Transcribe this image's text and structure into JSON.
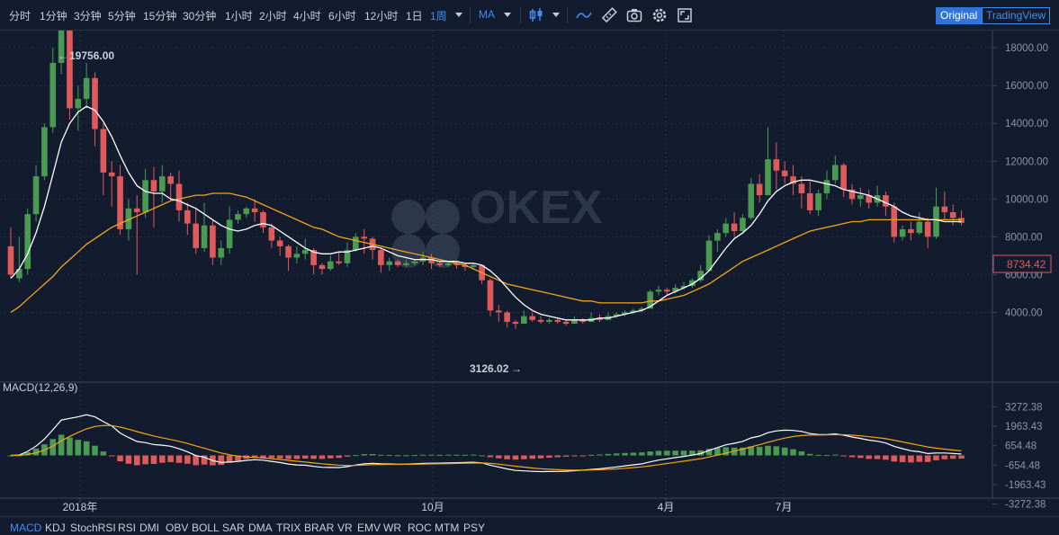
{
  "toolbar": {
    "intervals": [
      {
        "label": "分时",
        "active": false
      },
      {
        "label": "1分钟",
        "active": false
      },
      {
        "label": "3分钟",
        "active": false
      },
      {
        "label": "5分钟",
        "active": false
      },
      {
        "label": "15分钟",
        "active": false
      },
      {
        "label": "30分钟",
        "active": false
      },
      {
        "label": "1小时",
        "active": false
      },
      {
        "label": "2小时",
        "active": false
      },
      {
        "label": "4小时",
        "active": false
      },
      {
        "label": "6小时",
        "active": false
      },
      {
        "label": "12小时",
        "active": false
      },
      {
        "label": "1日",
        "active": false
      },
      {
        "label": "1周",
        "active": true
      }
    ],
    "ma_label": "MA",
    "original_label": "Original",
    "tradingview_label": "TradingView",
    "icons": [
      "candlestick-icon",
      "line-style-icon",
      "drawing-tools-icon",
      "screenshot-icon",
      "settings-icon",
      "fullscreen-icon"
    ]
  },
  "watermark": "OKEX",
  "price_axis": [
    "18000.00",
    "16000.00",
    "14000.00",
    "12000.00",
    "10000.00",
    "8000.00",
    "6000.00",
    "4000.00"
  ],
  "last_price": "8734.42",
  "macd_axis": [
    "3272.38",
    "1963.43",
    "654.48",
    "-654.48",
    "-1963.43",
    "-3272.38"
  ],
  "macd_label": "MACD(12,26,9)",
  "x_labels": [
    "2018年",
    "10月",
    "4月",
    "7月"
  ],
  "annotations": {
    "high": "19756.00",
    "low": "3126.02"
  },
  "bottom_indicators": [
    {
      "label": "MACD",
      "active": true
    },
    {
      "label": "KDJ",
      "active": false
    },
    {
      "label": "StochRSI",
      "active": false
    },
    {
      "label": "RSI",
      "active": false
    },
    {
      "label": "DMI",
      "active": false
    },
    {
      "label": "OBV",
      "active": false
    },
    {
      "label": "BOLL",
      "active": false
    },
    {
      "label": "SAR",
      "active": false
    },
    {
      "label": "DMA",
      "active": false
    },
    {
      "label": "TRIX",
      "active": false
    },
    {
      "label": "BRAR",
      "active": false
    },
    {
      "label": "VR",
      "active": false
    },
    {
      "label": "EMV",
      "active": false
    },
    {
      "label": "WR",
      "active": false
    },
    {
      "label": "ROC",
      "active": false
    },
    {
      "label": "MTM",
      "active": false
    },
    {
      "label": "PSY",
      "active": false
    }
  ],
  "colors": {
    "up": "#4a9a52",
    "down": "#e05a5c",
    "ma_fast": "#ffffff",
    "ma_slow": "#f3a419",
    "accent": "#3f8cf2",
    "background": "#131c2e"
  },
  "chart_data": {
    "type": "candlestick",
    "interval": "1周",
    "price_range": [
      3000,
      20000
    ],
    "macd_range": [
      -3600,
      3600
    ],
    "candles": [
      [
        7500,
        8500,
        6000,
        5800
      ],
      [
        5800,
        8000,
        6300,
        5600
      ],
      [
        6300,
        9500,
        9200,
        6000
      ],
      [
        9200,
        11800,
        11200,
        8800
      ],
      [
        11200,
        14000,
        13800,
        11000
      ],
      [
        13800,
        18000,
        17200,
        13500
      ],
      [
        17200,
        19756,
        19300,
        16600
      ],
      [
        19300,
        19700,
        14800,
        14200
      ],
      [
        14800,
        16000,
        15300,
        13600
      ],
      [
        15300,
        17200,
        16400,
        14800
      ],
      [
        16400,
        16700,
        13700,
        12800
      ],
      [
        13700,
        14000,
        11400,
        10200
      ],
      [
        11400,
        12000,
        11200,
        9600
      ],
      [
        11200,
        11800,
        8400,
        8100
      ],
      [
        8400,
        10000,
        9500,
        7800
      ],
      [
        9500,
        10200,
        9300,
        6000
      ],
      [
        9300,
        11600,
        11000,
        9000
      ],
      [
        11000,
        11700,
        10400,
        8500
      ],
      [
        10400,
        11800,
        11200,
        9800
      ],
      [
        11200,
        11400,
        10800,
        9900
      ],
      [
        10800,
        11500,
        9400,
        8800
      ],
      [
        9400,
        9800,
        8700,
        8100
      ],
      [
        8700,
        9500,
        7400,
        7100
      ],
      [
        7400,
        9800,
        8600,
        7200
      ],
      [
        8600,
        8900,
        6900,
        6500
      ],
      [
        6900,
        7800,
        7400,
        6500
      ],
      [
        7400,
        9600,
        8900,
        7100
      ],
      [
        8900,
        9400,
        9200,
        8700
      ],
      [
        9200,
        9600,
        9500,
        9000
      ],
      [
        9500,
        10000,
        9300,
        8800
      ],
      [
        9300,
        9400,
        8500,
        8200
      ],
      [
        8500,
        8700,
        7800,
        7400
      ],
      [
        7800,
        8000,
        7500,
        7000
      ],
      [
        7500,
        7600,
        6900,
        6200
      ],
      [
        6900,
        7500,
        7100,
        6600
      ],
      [
        7100,
        7900,
        7300,
        6800
      ],
      [
        7300,
        7400,
        6500,
        6000
      ],
      [
        6500,
        6600,
        6300,
        6000
      ],
      [
        6300,
        7000,
        6700,
        6200
      ],
      [
        6700,
        7200,
        6600,
        6500
      ],
      [
        6600,
        7700,
        7300,
        6400
      ],
      [
        7300,
        8200,
        8000,
        7200
      ],
      [
        8000,
        8400,
        7900,
        7100
      ],
      [
        7900,
        8000,
        7300,
        6800
      ],
      [
        7300,
        7400,
        6500,
        6100
      ],
      [
        6500,
        6900,
        6700,
        6200
      ],
      [
        6700,
        6800,
        6500,
        6400
      ],
      [
        6500,
        6800,
        6600,
        6400
      ],
      [
        6600,
        6800,
        6700,
        6500
      ],
      [
        6700,
        7200,
        6900,
        6500
      ],
      [
        6900,
        7100,
        6600,
        6300
      ],
      [
        6600,
        6700,
        6500,
        6400
      ],
      [
        6500,
        6700,
        6600,
        6400
      ],
      [
        6600,
        6700,
        6500,
        6300
      ],
      [
        6500,
        6600,
        6400,
        6200
      ],
      [
        6400,
        6600,
        6500,
        6300
      ],
      [
        6500,
        6500,
        5700,
        5500
      ],
      [
        5700,
        5800,
        4100,
        3800
      ],
      [
        4100,
        4400,
        4000,
        3500
      ],
      [
        4000,
        4100,
        3500,
        3200
      ],
      [
        3500,
        3600,
        3400,
        3126
      ],
      [
        3400,
        4100,
        3800,
        3400
      ],
      [
        3800,
        4000,
        3600,
        3500
      ],
      [
        3600,
        3800,
        3500,
        3400
      ],
      [
        3500,
        3700,
        3600,
        3400
      ],
      [
        3600,
        3700,
        3500,
        3400
      ],
      [
        3500,
        3600,
        3400,
        3300
      ],
      [
        3400,
        3800,
        3600,
        3400
      ],
      [
        3600,
        3700,
        3500,
        3400
      ],
      [
        3500,
        4000,
        3700,
        3500
      ],
      [
        3700,
        3900,
        3600,
        3500
      ],
      [
        3600,
        4000,
        3800,
        3600
      ],
      [
        3800,
        4000,
        3900,
        3700
      ],
      [
        3900,
        4100,
        4000,
        3800
      ],
      [
        4000,
        4200,
        4100,
        3900
      ],
      [
        4100,
        4300,
        4200,
        4000
      ],
      [
        4200,
        5200,
        5100,
        4200
      ],
      [
        5100,
        5400,
        5200,
        4900
      ],
      [
        5200,
        5300,
        5100,
        4900
      ],
      [
        5100,
        5500,
        5300,
        5000
      ],
      [
        5300,
        5600,
        5400,
        5200
      ],
      [
        5400,
        5800,
        5700,
        5300
      ],
      [
        5700,
        6500,
        6200,
        5600
      ],
      [
        6200,
        8100,
        7800,
        6200
      ],
      [
        7800,
        8400,
        8200,
        7200
      ],
      [
        8200,
        9000,
        8700,
        8000
      ],
      [
        8700,
        9300,
        8300,
        8000
      ],
      [
        8300,
        9200,
        9000,
        8200
      ],
      [
        9000,
        11100,
        10800,
        8900
      ],
      [
        10800,
        11300,
        10200,
        9800
      ],
      [
        10200,
        13800,
        12100,
        10200
      ],
      [
        12100,
        13000,
        11500,
        10500
      ],
      [
        11500,
        12000,
        11200,
        10800
      ],
      [
        11200,
        11800,
        10800,
        10200
      ],
      [
        10800,
        11200,
        10300,
        9500
      ],
      [
        10300,
        11000,
        9400,
        9200
      ],
      [
        9400,
        10500,
        10300,
        9100
      ],
      [
        10300,
        11500,
        11000,
        10000
      ],
      [
        11000,
        12300,
        11800,
        10800
      ],
      [
        11800,
        11900,
        10500,
        10100
      ],
      [
        10500,
        10800,
        10000,
        9700
      ],
      [
        10000,
        10600,
        10200,
        9600
      ],
      [
        10200,
        10500,
        9800,
        9500
      ],
      [
        9800,
        10700,
        10200,
        9600
      ],
      [
        10200,
        10400,
        9600,
        9100
      ],
      [
        9600,
        9800,
        8000,
        7700
      ],
      [
        8000,
        8600,
        8400,
        7800
      ],
      [
        8400,
        8800,
        8200,
        7800
      ],
      [
        8200,
        9300,
        8800,
        8100
      ],
      [
        8800,
        9000,
        8000,
        7400
      ],
      [
        8000,
        10600,
        9600,
        7900
      ],
      [
        9600,
        10400,
        9300,
        8900
      ],
      [
        9300,
        9700,
        9000,
        8600
      ],
      [
        9000,
        9400,
        8734,
        8600
      ]
    ],
    "ma_fast_series": [
      5800,
      6300,
      7100,
      8200,
      9600,
      11300,
      13000,
      14000,
      14600,
      14900,
      14700,
      14100,
      13300,
      12300,
      11400,
      10700,
      10400,
      10300,
      10300,
      10000,
      9900,
      9700,
      9500,
      9200,
      8900,
      8600,
      8400,
      8300,
      8400,
      8600,
      8700,
      8600,
      8300,
      8000,
      7700,
      7400,
      7200,
      7100,
      7100,
      7200,
      7200,
      7300,
      7400,
      7500,
      7400,
      7200,
      7000,
      6900,
      6800,
      6800,
      6800,
      6700,
      6700,
      6700,
      6600,
      6600,
      6500,
      6200,
      5800,
      5300,
      4800,
      4400,
      4100,
      3900,
      3800,
      3700,
      3600,
      3600,
      3600,
      3600,
      3700,
      3700,
      3800,
      3900,
      4000,
      4100,
      4300,
      4600,
      4900,
      5100,
      5300,
      5500,
      5800,
      6200,
      6800,
      7400,
      7900,
      8200,
      8600,
      9200,
      9900,
      10400,
      10700,
      10900,
      11000,
      11000,
      10900,
      10800,
      10700,
      10500,
      10400,
      10300,
      10200,
      10000,
      9800,
      9600,
      9300,
      9100,
      9000,
      8900,
      8900,
      8800,
      8800,
      8800
    ],
    "ma_slow_series": [
      4000,
      4300,
      4700,
      5100,
      5500,
      5900,
      6400,
      6800,
      7200,
      7600,
      7900,
      8200,
      8500,
      8700,
      8900,
      9100,
      9300,
      9500,
      9700,
      9900,
      10000,
      10100,
      10200,
      10200,
      10300,
      10300,
      10300,
      10200,
      10100,
      9900,
      9700,
      9500,
      9300,
      9100,
      8900,
      8700,
      8500,
      8400,
      8200,
      8000,
      7900,
      7800,
      7700,
      7600,
      7500,
      7400,
      7300,
      7200,
      7100,
      7000,
      6900,
      6800,
      6700,
      6600,
      6500,
      6300,
      6100,
      5900,
      5700,
      5500,
      5400,
      5300,
      5200,
      5100,
      5000,
      4900,
      4800,
      4700,
      4600,
      4600,
      4500,
      4500,
      4500,
      4500,
      4500,
      4500,
      4600,
      4600,
      4700,
      4800,
      4900,
      5100,
      5300,
      5500,
      5800,
      6100,
      6400,
      6700,
      6900,
      7100,
      7300,
      7500,
      7700,
      7900,
      8100,
      8300,
      8400,
      8500,
      8600,
      8700,
      8800,
      8800,
      8900,
      8900,
      8900,
      8900,
      8900,
      8900,
      8900,
      8900,
      8900,
      8900,
      8900,
      8900
    ],
    "title": "MACD(12,26,9)"
  }
}
